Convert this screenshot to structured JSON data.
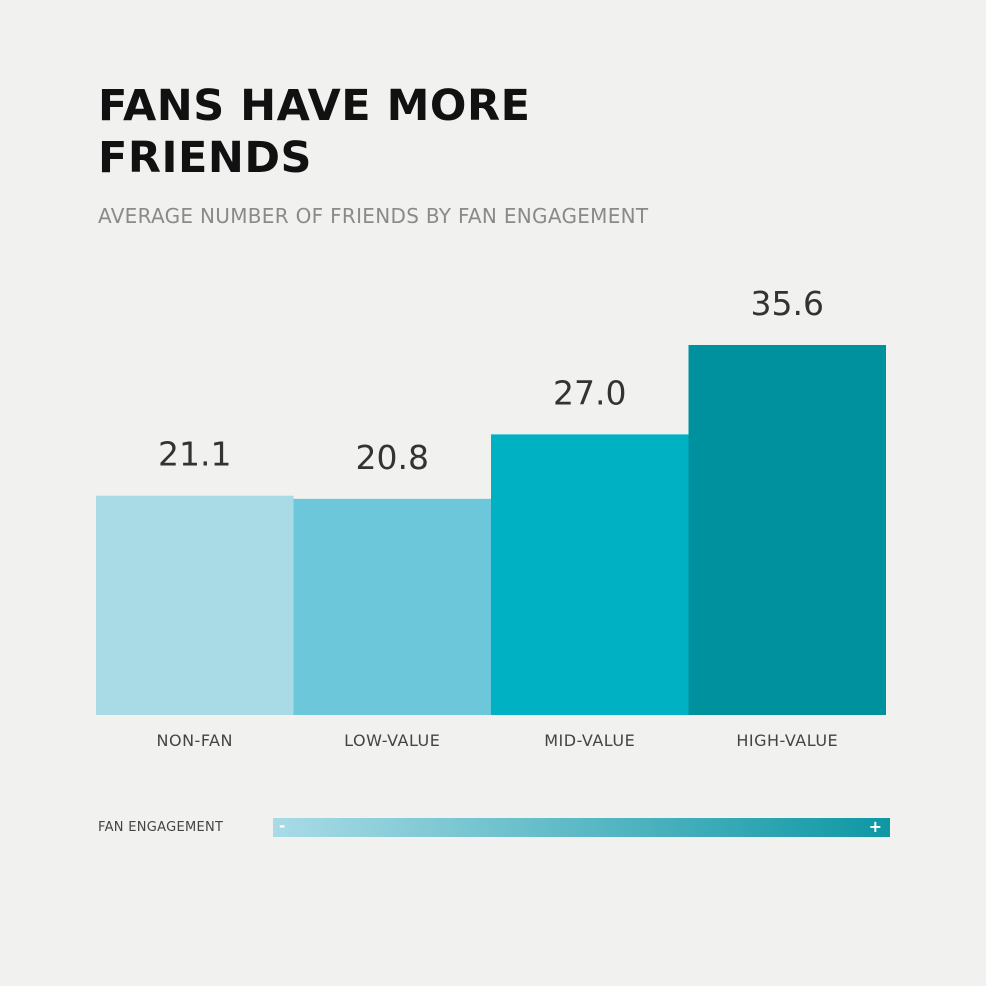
{
  "chart_data": {
    "type": "bar",
    "title": "FANS HAVE MORE FRIENDS",
    "subtitle": "AVERAGE NUMBER OF FRIENDS BY FAN ENGAGEMENT",
    "categories": [
      "NON-FAN",
      "LOW-VALUE",
      "MID-VALUE",
      "HIGH-VALUE"
    ],
    "values": [
      21.1,
      20.8,
      27.0,
      35.6
    ],
    "value_labels": [
      "21.1",
      "20.8",
      "27.0",
      "35.6"
    ],
    "colors": [
      "#a9dbe6",
      "#6cc7da",
      "#00b1c3",
      "#00919e"
    ],
    "ylim": [
      0,
      35.6
    ],
    "grid": false,
    "legend": {
      "label": "FAN ENGAGEMENT",
      "min_symbol": "-",
      "max_symbol": "+",
      "gradient": [
        "#a9dbe6",
        "#0e97a4"
      ]
    }
  }
}
